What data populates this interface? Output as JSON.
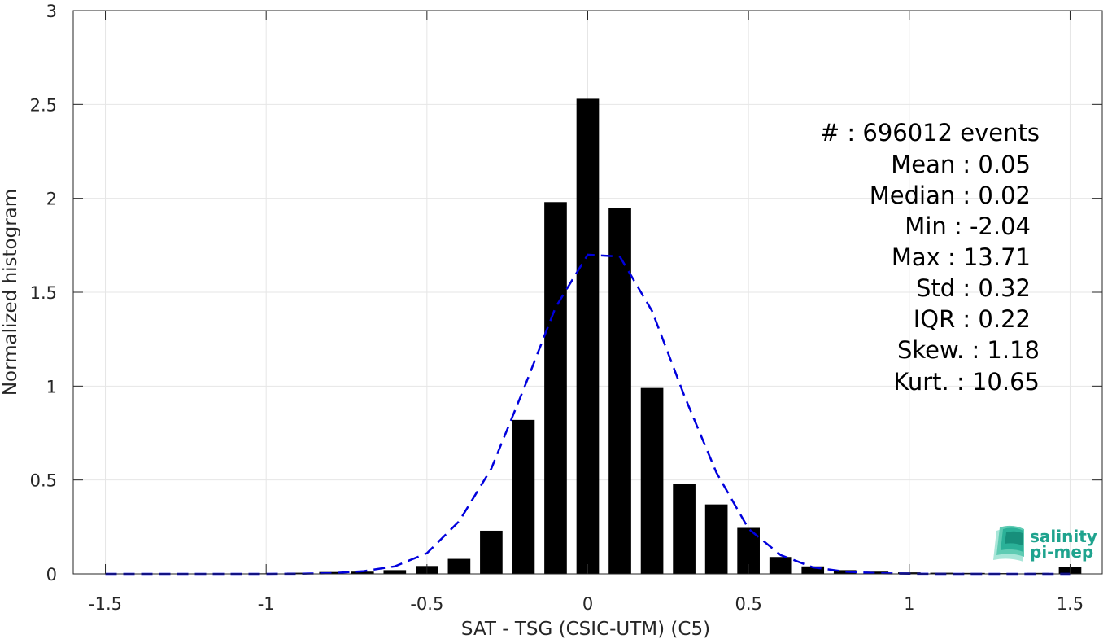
{
  "chart_data": {
    "type": "bar",
    "xlabel": "SAT - TSG (CSIC-UTM) (C5)",
    "ylabel": "Normalized histogram",
    "xlim": [
      -1.6,
      1.6
    ],
    "ylim": [
      0,
      3
    ],
    "xticks": [
      -1.5,
      -1,
      -0.5,
      0,
      0.5,
      1,
      1.5
    ],
    "xtick_labels": [
      "-1.5",
      "-1",
      "-0.5",
      "0",
      "0.5",
      "1",
      "1.5"
    ],
    "yticks": [
      0,
      0.5,
      1,
      1.5,
      2,
      2.5,
      3
    ],
    "ytick_labels": [
      "0",
      "0.5",
      "1",
      "1.5",
      "2",
      "2.5",
      "3"
    ],
    "grid": true,
    "bars": {
      "x": [
        -1.5,
        -1.4,
        -1.3,
        -1.2,
        -1.1,
        -1.0,
        -0.9,
        -0.8,
        -0.7,
        -0.6,
        -0.5,
        -0.4,
        -0.3,
        -0.2,
        -0.1,
        0.0,
        0.1,
        0.2,
        0.3,
        0.4,
        0.5,
        0.6,
        0.7,
        0.8,
        0.9,
        1.0,
        1.1,
        1.2,
        1.3,
        1.4,
        1.5
      ],
      "values": [
        0.002,
        0.002,
        0.002,
        0.002,
        0.002,
        0.003,
        0.006,
        0.01,
        0.012,
        0.02,
        0.042,
        0.08,
        0.23,
        0.82,
        1.98,
        2.53,
        1.95,
        0.99,
        0.48,
        0.37,
        0.245,
        0.09,
        0.04,
        0.02,
        0.012,
        0.008,
        0.006,
        0.005,
        0.004,
        0.005,
        0.035
      ],
      "width": 0.07,
      "color": "#000000"
    },
    "fit": {
      "style": "dashed",
      "color": "#0000dd",
      "x": [
        -1.5,
        -1.4,
        -1.3,
        -1.2,
        -1.1,
        -1.0,
        -0.9,
        -0.8,
        -0.7,
        -0.6,
        -0.5,
        -0.4,
        -0.3,
        -0.2,
        -0.1,
        0.0,
        0.1,
        0.2,
        0.3,
        0.4,
        0.5,
        0.6,
        0.7,
        0.8,
        0.9,
        1.0,
        1.1,
        1.2,
        1.3,
        1.4,
        1.5
      ],
      "y": [
        0.0,
        0.0,
        0.0,
        0.0,
        0.0,
        0.0,
        0.001,
        0.004,
        0.014,
        0.04,
        0.11,
        0.28,
        0.56,
        0.98,
        1.42,
        1.7,
        1.69,
        1.4,
        0.95,
        0.54,
        0.24,
        0.1,
        0.035,
        0.012,
        0.004,
        0.001,
        0.0,
        0.0,
        0.0,
        0.0,
        0.0
      ]
    },
    "stats": {
      "count": "#  : 696012 events",
      "mean": "Mean : 0.05",
      "median": "Median : 0.02",
      "min": "Min : -2.04",
      "max": "Max : 13.71",
      "std": "Std : 0.32",
      "iqr": "IQR : 0.22",
      "skew": "Skew. : 1.18",
      "kurt": "Kurt. : 10.65"
    }
  },
  "logo": {
    "line1": "salinity",
    "line2": "pi-mep",
    "color": "#1fa38e"
  }
}
